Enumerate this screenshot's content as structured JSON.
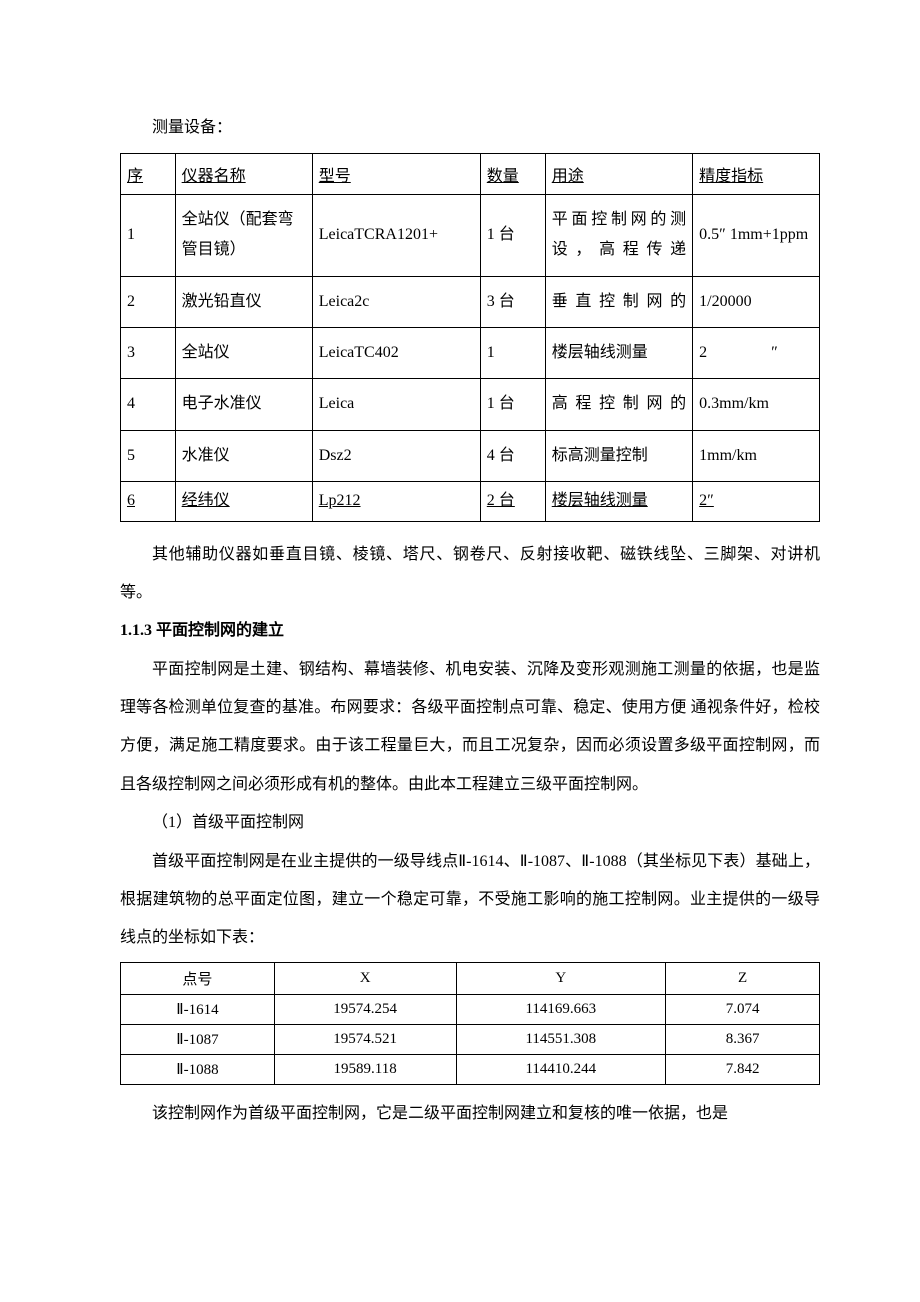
{
  "leading_text": "测量设备：",
  "equip_table": {
    "headers": {
      "seq": "序",
      "name": "仪器名称",
      "model": "型号",
      "qty": "数量",
      "use": "用途",
      "acc": "精度指标"
    },
    "rows": [
      {
        "seq": "1",
        "name": "全站仪（配套弯管目镜）",
        "model": "LeicaTCRA1201+",
        "qty": "1 台",
        "use": "平面控制网的测设，高程传递",
        "acc": "0.5″ 1mm+1ppm"
      },
      {
        "seq": "2",
        "name": "激光铅直仪",
        "model": "Leica2c",
        "qty": "3 台",
        "use": "垂直控制网的",
        "acc": "1/20000"
      },
      {
        "seq": "3",
        "name": "全站仪",
        "model": "LeicaTC402",
        "qty": "1",
        "use": "楼层轴线测量",
        "acc": "2    ″"
      },
      {
        "seq": "4",
        "name": "电子水准仪",
        "model": "Leica",
        "qty": "1 台",
        "use": "高程控制网的",
        "acc": "0.3mm/km"
      },
      {
        "seq": "5",
        "name": "水准仪",
        "model": "Dsz2",
        "qty": "4 台",
        "use": "标高测量控制",
        "acc": "1mm/km"
      },
      {
        "seq": "6",
        "name": "经纬仪",
        "model": "Lp212",
        "qty": "2 台",
        "use": "楼层轴线测量",
        "acc": "2″"
      }
    ]
  },
  "para_after_table": "其他辅助仪器如垂直目镜、棱镜、塔尺、钢卷尺、反射接收靶、磁铁线坠、三脚架、对讲机等。",
  "heading_113": "1.1.3  平面控制网的建立",
  "para_113_main": "平面控制网是土建、钢结构、幕墙装修、机电安装、沉降及变形观测施工测量的依据，也是监理等各检测单位复查的基准。布网要求：各级平面控制点可靠、稳定、使用方便 通视条件好，检校方便，满足施工精度要求。由于该工程量巨大，而且工况复杂，因而必须设置多级平面控制网，而且各级控制网之间必须形成有机的整体。由此本工程建立三级平面控制网。",
  "sub_heading_1": "（1）首级平面控制网",
  "para_sub_1": "首级平面控制网是在业主提供的一级导线点Ⅱ-1614、Ⅱ-1087、Ⅱ-1088（其坐标见下表）基础上，根据建筑物的总平面定位图，建立一个稳定可靠，不受施工影响的施工控制网。业主提供的一级导线点的坐标如下表：",
  "coord_table": {
    "headers": {
      "point": "点号",
      "x": "X",
      "y": "Y",
      "z": "Z"
    },
    "rows": [
      {
        "point": "Ⅱ-1614",
        "x": "19574.254",
        "y": "114169.663",
        "z": "7.074"
      },
      {
        "point": "Ⅱ-1087",
        "x": "19574.521",
        "y": "114551.308",
        "z": "8.367"
      },
      {
        "point": "Ⅱ-1088",
        "x": "19589.118",
        "y": "114410.244",
        "z": "7.842"
      }
    ]
  },
  "para_after_coord": "该控制网作为首级平面控制网，它是二级平面控制网建立和复核的唯一依据，也是"
}
